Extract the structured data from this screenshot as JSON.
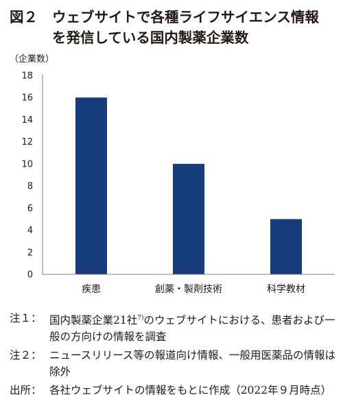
{
  "figure": {
    "number": "図２",
    "title_line1": "ウェブサイトで各種ライフサイエンス情報",
    "title_line2": "を発信している国内製薬企業数"
  },
  "chart_data": {
    "type": "bar",
    "ylabel": "（企業数）",
    "categories": [
      "疾患",
      "創薬・製剤技術",
      "科学教材"
    ],
    "values": [
      16,
      10,
      5
    ],
    "ylim": [
      0,
      18
    ],
    "yticks": [
      "0",
      "2",
      "4",
      "6",
      "8",
      "10",
      "12",
      "14",
      "16",
      "18"
    ],
    "grid": false,
    "bar_color": "#173C7C"
  },
  "notes": [
    {
      "label": "注１：",
      "text_a": "国内製薬企業21社",
      "sup": "7)",
      "text_b": "のウェブサイトにおける、患者および一般の方向けの情報を調査"
    },
    {
      "label": "注２：",
      "text": "ニュースリリース等の報道向け情報、一般用医薬品の情報は除外"
    },
    {
      "label": "出所：",
      "text": "各社ウェブサイトの情報をもとに作成（2022年９月時点）"
    }
  ]
}
